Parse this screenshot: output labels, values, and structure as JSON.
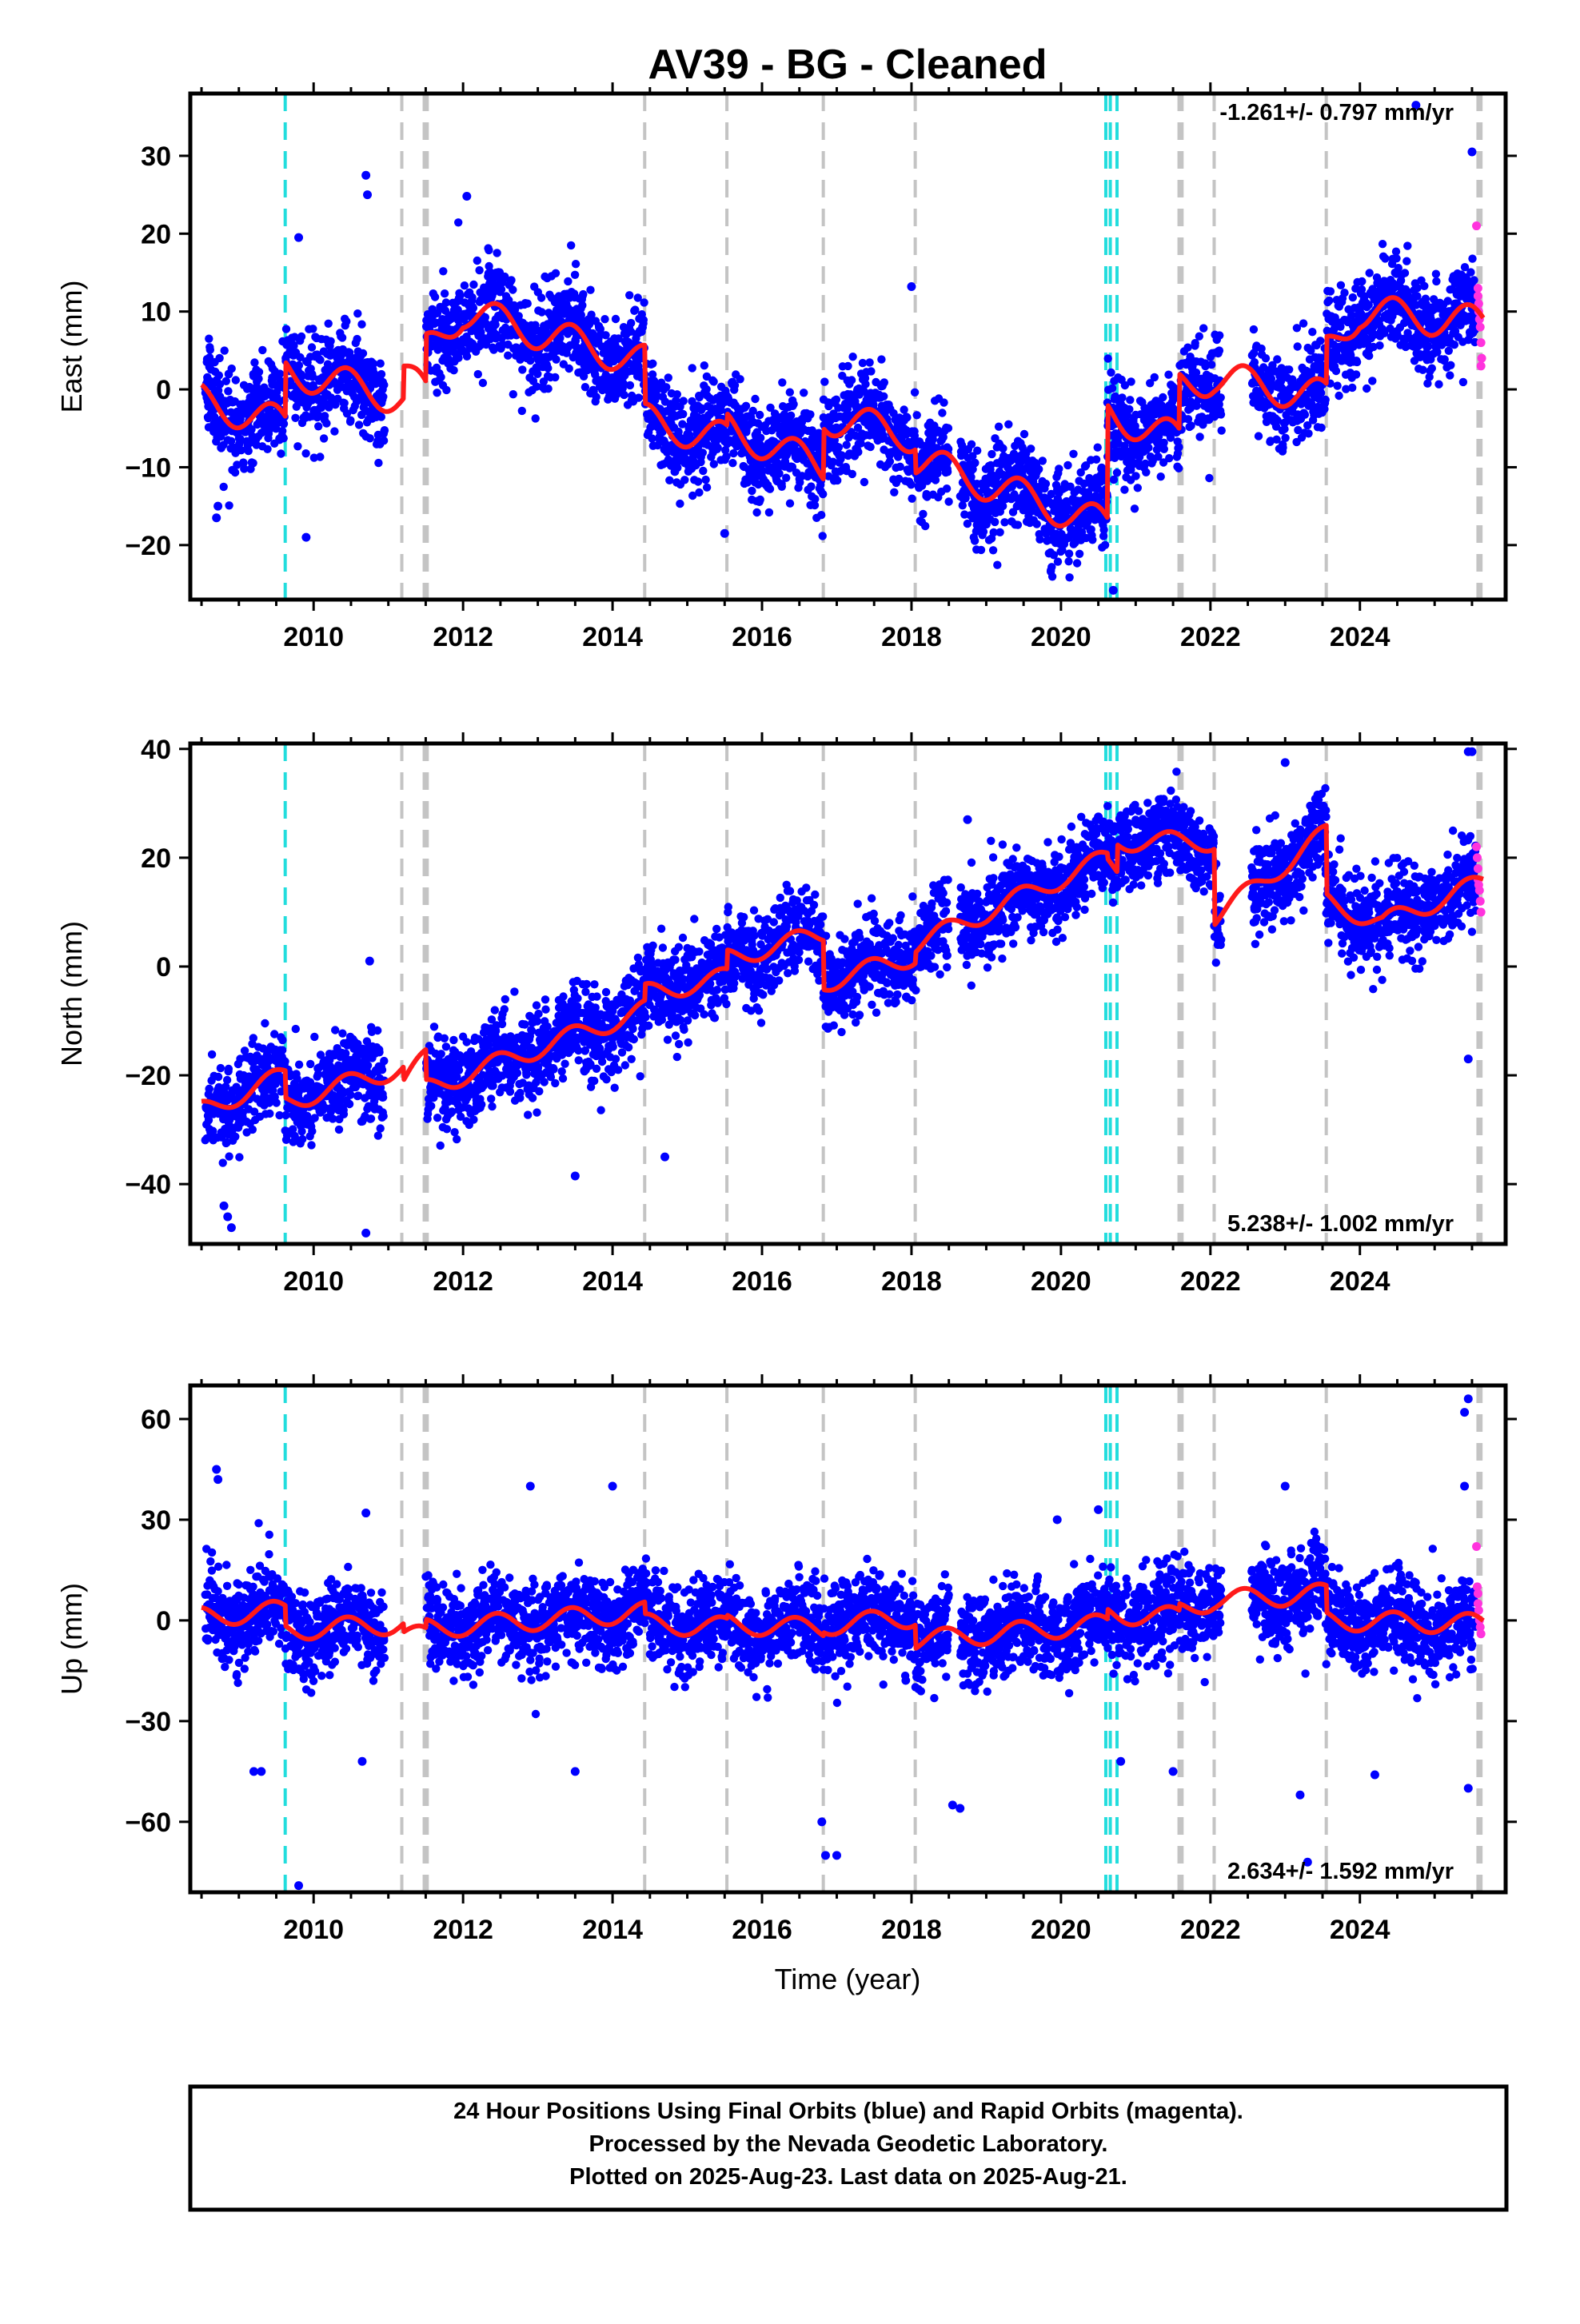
{
  "title": "AV39  - BG - Cleaned",
  "x_axis": {
    "label": "Time (year)",
    "min": 2008.35,
    "max": 2025.95,
    "ticks": [
      2010,
      2012,
      2014,
      2016,
      2018,
      2020,
      2022,
      2024
    ],
    "minor_step": 0.5
  },
  "colors": {
    "final_orbits": "#0000ff",
    "rapid_orbits": "#ff33dd",
    "model": "#ff1a1a",
    "event_gray": "#c4c4c4",
    "event_cyan": "#22dddd"
  },
  "events": {
    "cyan": [
      2009.62,
      2020.6,
      2020.66,
      2020.75
    ],
    "gray": [
      2011.18,
      2011.48,
      2011.52,
      2014.43,
      2015.53,
      2016.82,
      2018.05,
      2021.58,
      2021.62,
      2022.05,
      2023.55,
      2025.58,
      2025.62
    ]
  },
  "footer": {
    "line1": "24 Hour Positions Using Final Orbits (blue) and Rapid Orbits (magenta).",
    "line2": "Processed by the Nevada Geodetic Laboratory.",
    "line3": "Plotted on 2025-Aug-23. Last data on 2025-Aug-21."
  },
  "chart_data": [
    {
      "type": "scatter",
      "ylabel": "East (mm)",
      "ylim": [
        -27,
        38
      ],
      "yticks": [
        -20,
        -10,
        0,
        10,
        20,
        30
      ],
      "rate": "-1.261+/- 0.797 mm/yr",
      "rate_position": "top-right",
      "series": [
        {
          "name": "Final Orbits",
          "gaps": [
            [
              2010.95,
              2011.5
            ],
            [
              2018.5,
              2018.65
            ],
            [
              2022.15,
              2022.55
            ]
          ],
          "outliers": [
            [
              2008.7,
              -16.5
            ],
            [
              2008.72,
              -15
            ],
            [
              2009.8,
              19.5
            ],
            [
              2009.9,
              -19
            ],
            [
              2010.7,
              27.5
            ],
            [
              2010.72,
              25
            ],
            [
              2012.05,
              24.8
            ],
            [
              2015.5,
              -18.5
            ],
            [
              2018.0,
              13.2
            ],
            [
              2020.7,
              -25.8
            ],
            [
              2024.75,
              36.5
            ],
            [
              2025.5,
              30.5
            ]
          ]
        },
        {
          "name": "Rapid Orbits",
          "points": [
            [
              2025.56,
              21
            ],
            [
              2025.58,
              13
            ],
            [
              2025.58,
              12
            ],
            [
              2025.59,
              11
            ],
            [
              2025.59,
              10
            ],
            [
              2025.6,
              9
            ],
            [
              2025.61,
              8
            ],
            [
              2025.62,
              6
            ],
            [
              2025.63,
              4
            ],
            [
              2025.62,
              3
            ]
          ]
        },
        {
          "name": "Model",
          "trend": [
            [
              2008.5,
              -1.5
            ],
            [
              2009.62,
              -4.5
            ],
            [
              2009.62,
              2.5
            ],
            [
              2011.2,
              -1.2
            ],
            [
              2011.2,
              3.0
            ],
            [
              2011.5,
              -1.0
            ],
            [
              2011.5,
              5.0
            ],
            [
              2012.0,
              10.0
            ],
            [
              2014.43,
              3.5
            ],
            [
              2014.43,
              -4.0
            ],
            [
              2015.53,
              -6.5
            ],
            [
              2015.53,
              -5.0
            ],
            [
              2016.82,
              -10.0
            ],
            [
              2016.82,
              -3.5
            ],
            [
              2018.05,
              -6.0
            ],
            [
              2018.05,
              -9.0
            ],
            [
              2020.62,
              -17.5
            ],
            [
              2020.62,
              -3.0
            ],
            [
              2021.58,
              -6.5
            ],
            [
              2021.58,
              0.5
            ],
            [
              2022.05,
              1.5
            ],
            [
              2023.55,
              -1.0
            ],
            [
              2023.55,
              5.0
            ],
            [
              2024.0,
              10.0
            ],
            [
              2025.65,
              8.5
            ]
          ],
          "amplitude": 2.2
        }
      ]
    },
    {
      "type": "scatter",
      "ylabel": "North (mm)",
      "ylim": [
        -51,
        41
      ],
      "yticks": [
        -40,
        -20,
        0,
        20,
        40
      ],
      "rate": "5.238+/- 1.002 mm/yr",
      "rate_position": "bottom-right",
      "series": [
        {
          "name": "Final Orbits",
          "gaps": [
            [
              2010.95,
              2011.5
            ],
            [
              2018.5,
              2018.65
            ],
            [
              2022.15,
              2022.55
            ]
          ],
          "outliers": [
            [
              2008.8,
              -44
            ],
            [
              2008.85,
              -46
            ],
            [
              2008.9,
              -48
            ],
            [
              2010.7,
              -49
            ],
            [
              2010.75,
              1
            ],
            [
              2013.5,
              -38.5
            ],
            [
              2014.7,
              -35
            ],
            [
              2018.75,
              27
            ],
            [
              2020.5,
              27.5
            ],
            [
              2023.0,
              37.5
            ],
            [
              2025.45,
              39.5
            ],
            [
              2025.5,
              39.5
            ],
            [
              2025.45,
              -17
            ]
          ]
        },
        {
          "name": "Rapid Orbits",
          "points": [
            [
              2025.56,
              22
            ],
            [
              2025.57,
              20
            ],
            [
              2025.58,
              18
            ],
            [
              2025.58,
              16
            ],
            [
              2025.59,
              15
            ],
            [
              2025.6,
              14
            ],
            [
              2025.61,
              12
            ],
            [
              2025.62,
              10
            ]
          ]
        },
        {
          "name": "Model",
          "trend": [
            [
              2008.5,
              -26.5
            ],
            [
              2009.62,
              -20.0
            ],
            [
              2009.62,
              -25.0
            ],
            [
              2011.2,
              -18.5
            ],
            [
              2011.2,
              -21.0
            ],
            [
              2011.5,
              -17.0
            ],
            [
              2011.5,
              -22.5
            ],
            [
              2014.43,
              -8.0
            ],
            [
              2014.43,
              -5.0
            ],
            [
              2015.53,
              -2.0
            ],
            [
              2015.53,
              1.5
            ],
            [
              2016.82,
              6.0
            ],
            [
              2016.82,
              -3.0
            ],
            [
              2018.05,
              2.0
            ],
            [
              2018.05,
              4.0
            ],
            [
              2020.62,
              20.0
            ],
            [
              2020.62,
              19.0
            ],
            [
              2020.75,
              18.0
            ],
            [
              2020.75,
              23.0
            ],
            [
              2022.05,
              23.0
            ],
            [
              2022.05,
              9.0
            ],
            [
              2023.55,
              24.5
            ],
            [
              2023.55,
              12.0
            ],
            [
              2024.3,
              8.0
            ],
            [
              2025.65,
              15.5
            ]
          ],
          "amplitude": 1.8
        }
      ]
    },
    {
      "type": "scatter",
      "ylabel": "Up (mm)",
      "ylim": [
        -81,
        70
      ],
      "yticks": [
        -60,
        -30,
        0,
        30,
        60
      ],
      "rate": "2.634+/- 1.592 mm/yr",
      "rate_position": "bottom-right",
      "series": [
        {
          "name": "Final Orbits",
          "gaps": [
            [
              2010.95,
              2011.5
            ],
            [
              2018.5,
              2018.65
            ],
            [
              2022.15,
              2022.55
            ]
          ],
          "outliers": [
            [
              2008.7,
              45
            ],
            [
              2008.72,
              42
            ],
            [
              2009.2,
              -45
            ],
            [
              2009.3,
              -45
            ],
            [
              2009.8,
              -79
            ],
            [
              2010.65,
              -42
            ],
            [
              2010.7,
              32
            ],
            [
              2012.9,
              40
            ],
            [
              2013.5,
              -45
            ],
            [
              2014.0,
              40
            ],
            [
              2016.8,
              -60
            ],
            [
              2016.85,
              -70
            ],
            [
              2017.0,
              -70
            ],
            [
              2018.55,
              -55
            ],
            [
              2018.65,
              -56
            ],
            [
              2019.95,
              30
            ],
            [
              2020.5,
              33
            ],
            [
              2020.8,
              -42
            ],
            [
              2021.5,
              -45
            ],
            [
              2023.0,
              40
            ],
            [
              2023.2,
              -52
            ],
            [
              2023.3,
              -72
            ],
            [
              2024.2,
              -46
            ],
            [
              2025.45,
              66
            ],
            [
              2025.4,
              62
            ],
            [
              2025.4,
              40
            ],
            [
              2025.45,
              -50
            ]
          ]
        },
        {
          "name": "Rapid Orbits",
          "points": [
            [
              2025.56,
              22
            ],
            [
              2025.57,
              10
            ],
            [
              2025.58,
              8
            ],
            [
              2025.58,
              5
            ],
            [
              2025.59,
              3
            ],
            [
              2025.6,
              0
            ],
            [
              2025.61,
              -2
            ],
            [
              2025.62,
              -4
            ]
          ]
        },
        {
          "name": "Model",
          "trend": [
            [
              2008.5,
              1.0
            ],
            [
              2009.62,
              3.0
            ],
            [
              2009.62,
              -3.0
            ],
            [
              2011.2,
              -1.0
            ],
            [
              2011.2,
              -3.5
            ],
            [
              2011.5,
              -5.0
            ],
            [
              2011.5,
              -2.5
            ],
            [
              2014.43,
              2.5
            ],
            [
              2014.43,
              -1.0
            ],
            [
              2015.53,
              -2.0
            ],
            [
              2015.53,
              -1.0
            ],
            [
              2016.82,
              -2.5
            ],
            [
              2016.82,
              -1.5
            ],
            [
              2018.05,
              1.0
            ],
            [
              2018.05,
              -6.0
            ],
            [
              2020.62,
              -1.0
            ],
            [
              2020.62,
              2.0
            ],
            [
              2021.58,
              1.0
            ],
            [
              2021.58,
              3.0
            ],
            [
              2022.05,
              6.0
            ],
            [
              2023.55,
              8.0
            ],
            [
              2023.55,
              0.0
            ],
            [
              2025.65,
              -1.0
            ]
          ],
          "amplitude": 3.0
        }
      ]
    }
  ]
}
